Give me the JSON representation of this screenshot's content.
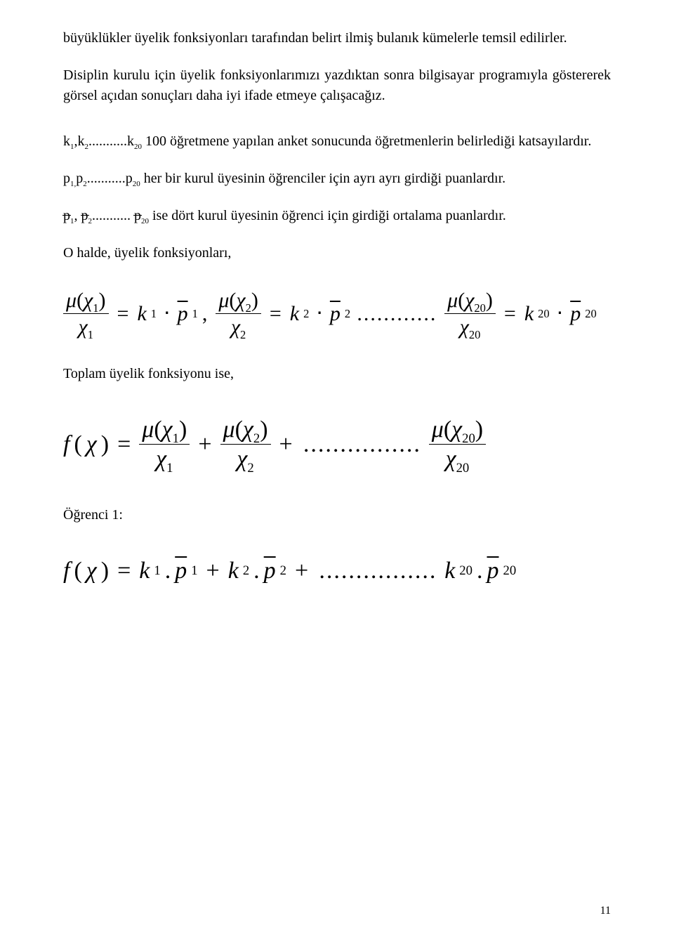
{
  "para1": "büyüklükler üyelik fonksiyonları tarafından belirt ilmiş bulanık kümelerle temsil edilirler.",
  "para2": "Disiplin kurulu için üyelik fonksiyonlarımızı yazdıktan sonra bilgisayar programıyla göstererek görsel açıdan sonuçları daha iyi ifade etmeye çalışacağız.",
  "para3_a": "k",
  "para3_b": ",k",
  "para3_c": "...........k",
  "para3_d": " 100 öğretmene yapılan anket sonucunda öğretmenlerin belirlediği katsayılardır.",
  "para4_a": "p",
  "para4_b": "p",
  "para4_c": "...........p",
  "para4_d": " her bir kurul üyesinin öğrenciler için ayrı ayrı girdiği puanlardır.",
  "para5_a": ", ",
  "para5_b": "........... ",
  "para5_c": " ise dört kurul üyesinin öğrenci için girdiği ortalama puanlardır.",
  "para6": "O halde, üyelik fonksiyonları,",
  "para7": "Toplam üyelik fonksiyonu ise,",
  "para8": "Öğrenci 1:",
  "page_num": "11",
  "sym": {
    "mu": "μ",
    "chi": "χ",
    "eq": "=",
    "plus": "+",
    "cdot": "⋅",
    "period": ".",
    "comma": ",",
    "k": "k",
    "p": "p",
    "f": "f",
    "lparen": "(",
    "rparen": ")",
    "pbar": "p",
    "pstrike": "p",
    "dots_short": "............",
    "dots_long": "................",
    "one": "1",
    "two": "2",
    "twenty": "20",
    "s1": "1,",
    "s1c": "1",
    "s2": "2",
    "s20": "20"
  }
}
